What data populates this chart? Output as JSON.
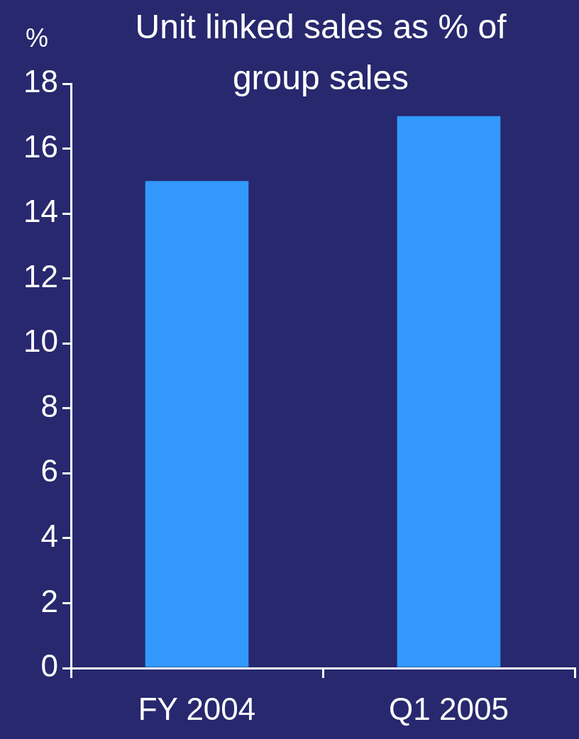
{
  "chart_data": {
    "type": "bar",
    "title": "Unit linked sales as % of group sales",
    "ylabel": "%",
    "categories": [
      "FY 2004",
      "Q1 2005"
    ],
    "series": [
      {
        "color": "#3399ff",
        "values": [
          15,
          17
        ]
      }
    ],
    "ylim": [
      0,
      18
    ],
    "yticks": [
      0,
      2,
      4,
      6,
      8,
      10,
      12,
      14,
      16,
      18
    ],
    "grid": false,
    "legend": false
  }
}
